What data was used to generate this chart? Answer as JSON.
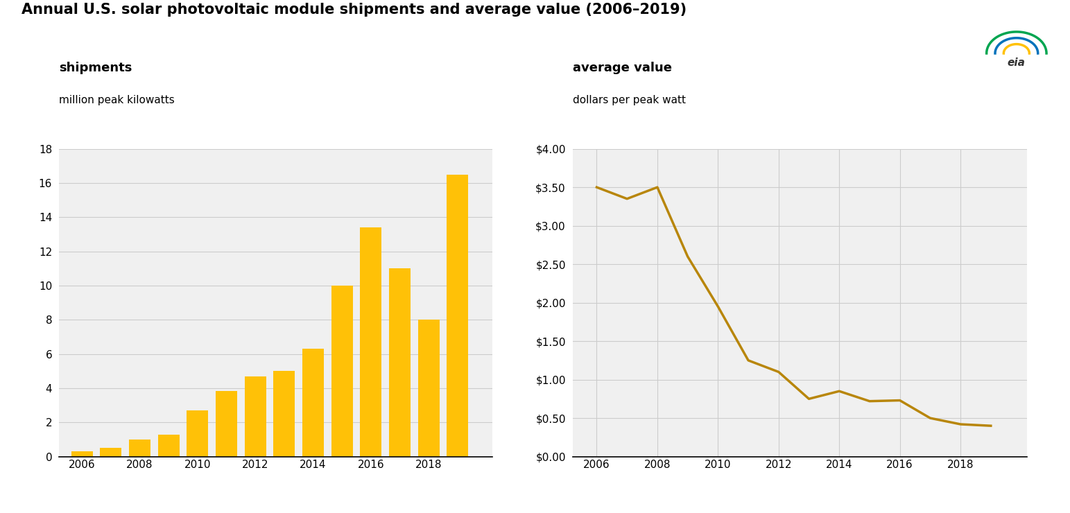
{
  "title": "Annual U.S. solar photovoltaic module shipments and average value (2006–2019)",
  "left_label1": "shipments",
  "left_label2": "million peak kilowatts",
  "right_label1": "average value",
  "right_label2": "dollars per peak watt",
  "bar_years": [
    2006,
    2007,
    2008,
    2009,
    2010,
    2011,
    2012,
    2013,
    2014,
    2015,
    2016,
    2017,
    2018,
    2019
  ],
  "bar_values": [
    0.3,
    0.5,
    1.0,
    1.3,
    2.7,
    3.85,
    4.7,
    5.0,
    6.3,
    10.0,
    13.4,
    11.0,
    8.0,
    16.5
  ],
  "bar_color": "#FFC107",
  "line_years": [
    2006,
    2007,
    2008,
    2009,
    2010,
    2011,
    2012,
    2013,
    2014,
    2015,
    2016,
    2017,
    2018,
    2019
  ],
  "line_values": [
    3.5,
    3.35,
    3.5,
    2.6,
    1.95,
    1.25,
    1.1,
    0.75,
    0.85,
    0.72,
    0.73,
    0.5,
    0.42,
    0.4
  ],
  "line_color": "#B8860B",
  "bar_ylim": [
    0,
    18
  ],
  "bar_yticks": [
    0,
    2,
    4,
    6,
    8,
    10,
    12,
    14,
    16,
    18
  ],
  "line_ylim": [
    0,
    4.0
  ],
  "line_yticks": [
    0.0,
    0.5,
    1.0,
    1.5,
    2.0,
    2.5,
    3.0,
    3.5,
    4.0
  ],
  "xticks": [
    2006,
    2008,
    2010,
    2012,
    2014,
    2016,
    2018
  ],
  "background_color": "#f0f0f0",
  "grid_color": "#cccccc",
  "title_fontsize": 15,
  "label_fontsize": 13,
  "sublabel_fontsize": 11,
  "tick_fontsize": 11
}
